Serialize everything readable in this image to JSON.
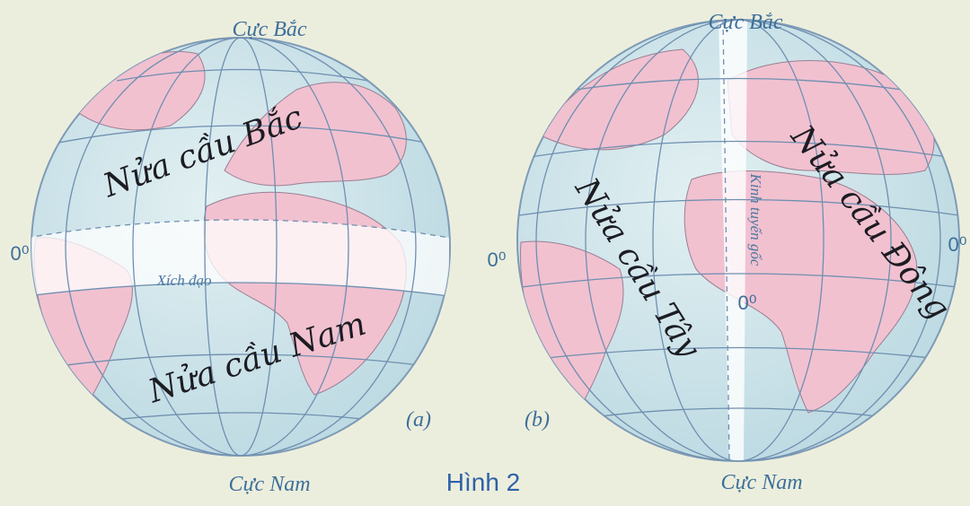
{
  "figure": {
    "caption": "Hình 2",
    "globe_a": {
      "north_pole": "Cực Bắc",
      "south_pole": "Cực Nam",
      "northern": "Nửa cầu Bắc",
      "southern": "Nửa cầu Nam",
      "equator": "Xích đạo",
      "degree": "0⁰",
      "label": "(a)"
    },
    "globe_b": {
      "north_pole": "Cực Bắc",
      "south_pole": "Cực Nam",
      "western": "Nửa cầu Tây",
      "eastern": "Nửa cầu Đông",
      "prime_meridian": "Kinh tuyến gốc",
      "degree_left": "0⁰",
      "degree_center": "0⁰",
      "degree_right": "0⁰",
      "label": "(b)"
    }
  }
}
